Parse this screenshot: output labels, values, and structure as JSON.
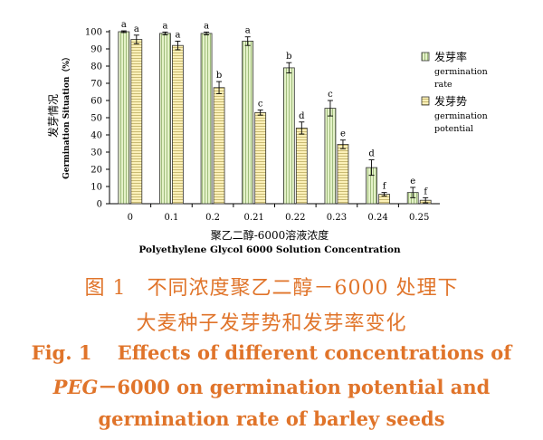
{
  "chart_data": {
    "type": "bar",
    "categories": [
      "0",
      "0.1",
      "0.2",
      "0.21",
      "0.22",
      "0.23",
      "0.24",
      "0.25"
    ],
    "series": [
      {
        "name": "发芽率 germination rate",
        "legend_cn": "发芽率",
        "legend_en": [
          "germination",
          "rate"
        ],
        "fill": "#e4f2c8",
        "values": [
          100,
          99,
          99,
          94.5,
          79,
          55.5,
          21,
          6.5
        ],
        "errors": [
          0.5,
          0.8,
          0.8,
          2.5,
          3,
          4.5,
          4.5,
          3
        ],
        "letters": [
          "a",
          "a",
          "a",
          "a",
          "b",
          "c",
          "d",
          "e"
        ]
      },
      {
        "name": "发芽势 germination potential",
        "legend_cn": "发芽势",
        "legend_en": [
          "germination",
          "potential"
        ],
        "fill": "#fbf0b8",
        "values": [
          95.5,
          92,
          67.5,
          53,
          44,
          34.5,
          5.5,
          2
        ],
        "errors": [
          2.5,
          2.5,
          3.5,
          1.5,
          3.5,
          2.5,
          1,
          1.5
        ],
        "letters": [
          "a",
          "a",
          "b",
          "c",
          "d",
          "e",
          "f",
          "f"
        ]
      }
    ],
    "ylim": [
      0,
      100
    ],
    "yticks": [
      "0",
      "10",
      "20",
      "30",
      "40",
      "50",
      "60",
      "70",
      "80",
      "90",
      "100"
    ],
    "ylabel_cn": "发芽情况",
    "ylabel_en": "Germination  Situation（%）",
    "xlabel_cn": "聚乙二醇-6000溶液浓度",
    "xlabel_en": "Polyethylene Glycol 6000 Solution Concentration",
    "legend_position": "right",
    "grid": false
  },
  "caption": {
    "cn_line1": "图 1　不同浓度聚乙二醇－6000 处理下",
    "cn_line2": "大麦种子发芽势和发芽率变化",
    "en_line1": "Fig. 1　 Effects of different concentrations of",
    "en_line2_italic": "PEG",
    "en_line2_rest": "－6000 on germination potential and",
    "en_line3": "germination rate of barley seeds"
  },
  "colors": {
    "caption": "#e0742a",
    "axis": "#000000",
    "bar_outline": "#333333",
    "hatch": "#7a8a50"
  }
}
